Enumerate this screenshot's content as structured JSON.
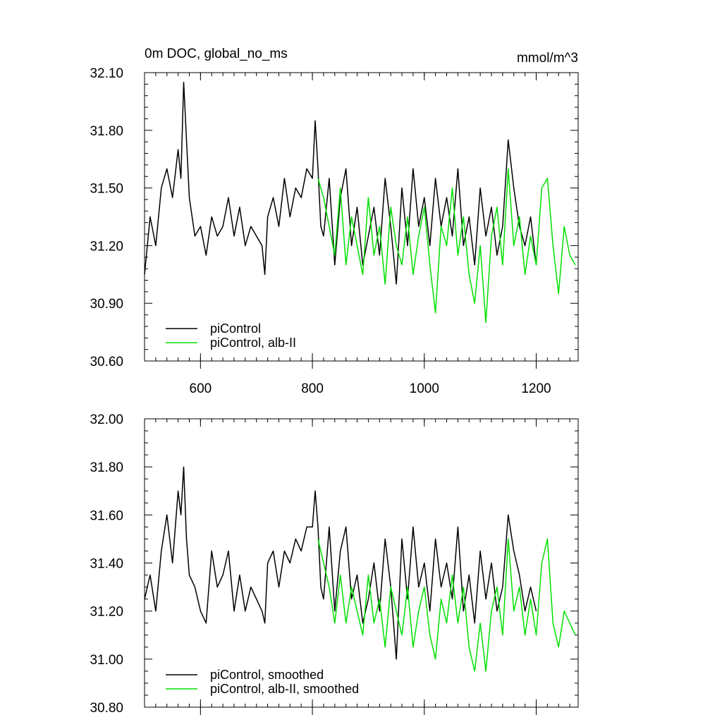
{
  "chart_data": [
    {
      "type": "line",
      "title": "0m DOC, global_no_ms",
      "units": "mmol/m^3",
      "xlim": [
        500,
        1275
      ],
      "ylim": [
        30.6,
        32.1
      ],
      "xticks": [
        600,
        800,
        1000,
        1200
      ],
      "xtick_labels": [
        "600",
        "800",
        "1000",
        "1200"
      ],
      "yticks": [
        30.6,
        30.9,
        31.2,
        31.5,
        31.8,
        32.1
      ],
      "ytick_labels": [
        "30.60",
        "30.90",
        "31.20",
        "31.50",
        "31.80",
        "32.10"
      ],
      "legend_position": "bottom-left",
      "series": [
        {
          "name": "piControl",
          "color": "#000000",
          "x": [
            500,
            510,
            520,
            530,
            540,
            550,
            560,
            565,
            570,
            575,
            580,
            590,
            600,
            610,
            620,
            630,
            640,
            650,
            660,
            670,
            680,
            690,
            700,
            710,
            715,
            720,
            730,
            740,
            750,
            760,
            770,
            780,
            790,
            800,
            805,
            810,
            815,
            820,
            830,
            840,
            850,
            860,
            870,
            880,
            890,
            900,
            910,
            920,
            930,
            940,
            950,
            960,
            970,
            980,
            990,
            1000,
            1010,
            1020,
            1030,
            1040,
            1050,
            1060,
            1070,
            1080,
            1090,
            1100,
            1110,
            1120,
            1130,
            1140,
            1150,
            1160,
            1170,
            1180,
            1190,
            1200
          ],
          "y": [
            31.05,
            31.35,
            31.2,
            31.5,
            31.6,
            31.45,
            31.7,
            31.55,
            32.05,
            31.75,
            31.45,
            31.25,
            31.3,
            31.15,
            31.35,
            31.25,
            31.3,
            31.45,
            31.25,
            31.4,
            31.2,
            31.3,
            31.25,
            31.2,
            31.05,
            31.35,
            31.45,
            31.3,
            31.55,
            31.35,
            31.5,
            31.45,
            31.6,
            31.55,
            31.85,
            31.6,
            31.3,
            31.25,
            31.55,
            31.1,
            31.45,
            31.6,
            31.2,
            31.4,
            31.1,
            31.25,
            31.4,
            31.15,
            31.55,
            31.3,
            31.0,
            31.5,
            31.2,
            31.6,
            31.3,
            31.45,
            31.2,
            31.55,
            31.3,
            31.45,
            31.25,
            31.6,
            31.2,
            31.35,
            31.1,
            31.5,
            31.25,
            31.4,
            31.15,
            31.3,
            31.75,
            31.5,
            31.3,
            31.2,
            31.35,
            31.1
          ]
        },
        {
          "name": "piControl, alb-II",
          "color": "#00e000",
          "x": [
            810,
            820,
            830,
            840,
            850,
            860,
            870,
            880,
            890,
            900,
            910,
            920,
            930,
            940,
            950,
            960,
            970,
            980,
            990,
            1000,
            1010,
            1020,
            1030,
            1040,
            1050,
            1060,
            1070,
            1080,
            1090,
            1100,
            1110,
            1120,
            1130,
            1140,
            1150,
            1160,
            1170,
            1180,
            1190,
            1200,
            1210,
            1220,
            1230,
            1240,
            1250,
            1260,
            1270
          ],
          "y": [
            31.55,
            31.45,
            31.3,
            31.15,
            31.5,
            31.1,
            31.35,
            31.2,
            31.05,
            31.45,
            31.15,
            31.3,
            31.0,
            31.4,
            31.2,
            31.1,
            31.35,
            31.05,
            31.25,
            31.4,
            31.1,
            30.85,
            31.3,
            31.2,
            31.5,
            31.15,
            31.35,
            31.05,
            30.9,
            31.2,
            30.8,
            31.25,
            31.4,
            31.1,
            31.6,
            31.2,
            31.35,
            31.05,
            31.25,
            31.1,
            31.5,
            31.55,
            31.2,
            30.95,
            31.3,
            31.15,
            31.1
          ]
        }
      ]
    },
    {
      "type": "line",
      "xlim": [
        500,
        1275
      ],
      "ylim": [
        30.8,
        32.0
      ],
      "xticks": [
        600,
        800,
        1000,
        1200
      ],
      "yticks": [
        30.8,
        31.0,
        31.2,
        31.4,
        31.6,
        31.8,
        32.0
      ],
      "ytick_labels": [
        "30.80",
        "31.00",
        "31.20",
        "31.40",
        "31.60",
        "31.80",
        "32.00"
      ],
      "legend_position": "bottom-left",
      "series": [
        {
          "name": "piControl, smoothed",
          "color": "#000000",
          "x": [
            500,
            510,
            520,
            530,
            540,
            550,
            560,
            565,
            570,
            575,
            580,
            590,
            600,
            610,
            620,
            630,
            640,
            650,
            660,
            670,
            680,
            690,
            700,
            710,
            715,
            720,
            730,
            740,
            750,
            760,
            770,
            780,
            790,
            800,
            805,
            810,
            815,
            820,
            830,
            840,
            850,
            860,
            870,
            880,
            890,
            900,
            910,
            920,
            930,
            940,
            950,
            960,
            970,
            980,
            990,
            1000,
            1010,
            1020,
            1030,
            1040,
            1050,
            1060,
            1070,
            1080,
            1090,
            1100,
            1110,
            1120,
            1130,
            1140,
            1150,
            1160,
            1170,
            1180,
            1190,
            1200
          ],
          "y": [
            31.25,
            31.35,
            31.2,
            31.45,
            31.6,
            31.4,
            31.7,
            31.6,
            31.8,
            31.5,
            31.35,
            31.3,
            31.2,
            31.15,
            31.45,
            31.3,
            31.35,
            31.45,
            31.2,
            31.35,
            31.2,
            31.3,
            31.25,
            31.2,
            31.15,
            31.4,
            31.45,
            31.3,
            31.45,
            31.4,
            31.5,
            31.45,
            31.55,
            31.55,
            31.7,
            31.55,
            31.3,
            31.25,
            31.55,
            31.2,
            31.45,
            31.55,
            31.25,
            31.35,
            31.15,
            31.25,
            31.4,
            31.2,
            31.5,
            31.3,
            31.0,
            31.5,
            31.25,
            31.55,
            31.3,
            31.4,
            31.2,
            31.5,
            31.3,
            31.4,
            31.25,
            31.55,
            31.2,
            31.35,
            31.15,
            31.45,
            31.25,
            31.4,
            31.2,
            31.3,
            31.6,
            31.45,
            31.35,
            31.2,
            31.3,
            31.2
          ]
        },
        {
          "name": "piControl, alb-II, smoothed",
          "color": "#00e000",
          "x": [
            810,
            820,
            830,
            840,
            850,
            860,
            870,
            880,
            890,
            900,
            910,
            920,
            930,
            940,
            950,
            960,
            970,
            980,
            990,
            1000,
            1010,
            1020,
            1030,
            1040,
            1050,
            1060,
            1070,
            1080,
            1090,
            1100,
            1110,
            1120,
            1130,
            1140,
            1150,
            1160,
            1170,
            1180,
            1190,
            1200,
            1210,
            1220,
            1230,
            1240,
            1250,
            1260,
            1270
          ],
          "y": [
            31.5,
            31.4,
            31.3,
            31.15,
            31.35,
            31.15,
            31.3,
            31.2,
            31.1,
            31.35,
            31.15,
            31.25,
            31.05,
            31.3,
            31.2,
            31.1,
            31.3,
            31.05,
            31.2,
            31.3,
            31.1,
            31.0,
            31.25,
            31.15,
            31.35,
            31.15,
            31.3,
            31.05,
            30.95,
            31.15,
            30.95,
            31.2,
            31.3,
            31.1,
            31.5,
            31.2,
            31.3,
            31.1,
            31.25,
            31.1,
            31.4,
            31.5,
            31.15,
            31.05,
            31.2,
            31.15,
            31.1
          ]
        }
      ]
    }
  ]
}
